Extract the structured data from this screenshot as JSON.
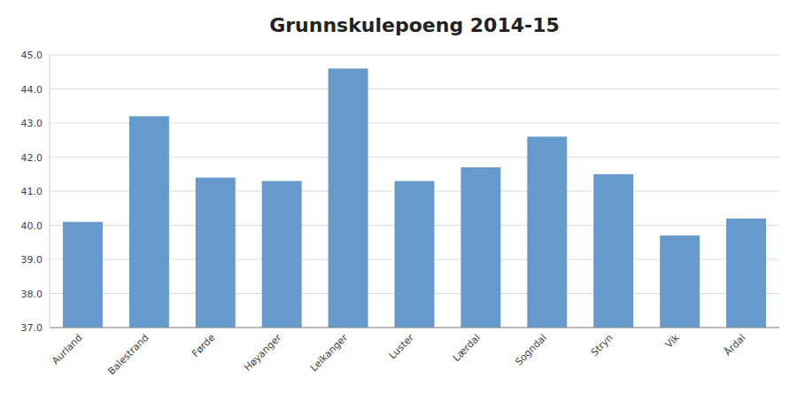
{
  "chart_data": {
    "type": "bar",
    "title": "Grunnskulepoeng 2014-15",
    "categories": [
      "Aurland",
      "Balestrand",
      "Førde",
      "Høyanger",
      "Leikanger",
      "Luster",
      "Lærdal",
      "Sogndal",
      "Stryn",
      "Vik",
      "Årdal"
    ],
    "values": [
      40.1,
      43.2,
      41.4,
      41.3,
      44.6,
      41.3,
      41.7,
      42.6,
      41.5,
      39.7,
      40.2
    ],
    "color": "#6699CC",
    "ylim": [
      37.0,
      45.0
    ],
    "yticks": [
      {
        "value": 37.0,
        "label": "37.0"
      },
      {
        "value": 38.0,
        "label": "38.0"
      },
      {
        "value": 39.0,
        "label": "39.0"
      },
      {
        "value": 40.0,
        "label": "40.0"
      },
      {
        "value": 41.0,
        "label": "41.0"
      },
      {
        "value": 42.0,
        "label": "42.0"
      },
      {
        "value": 43.0,
        "label": "43.0"
      },
      {
        "value": 44.0,
        "label": "44.0"
      },
      {
        "value": 45.0,
        "label": "45.0"
      }
    ],
    "grid": true
  }
}
